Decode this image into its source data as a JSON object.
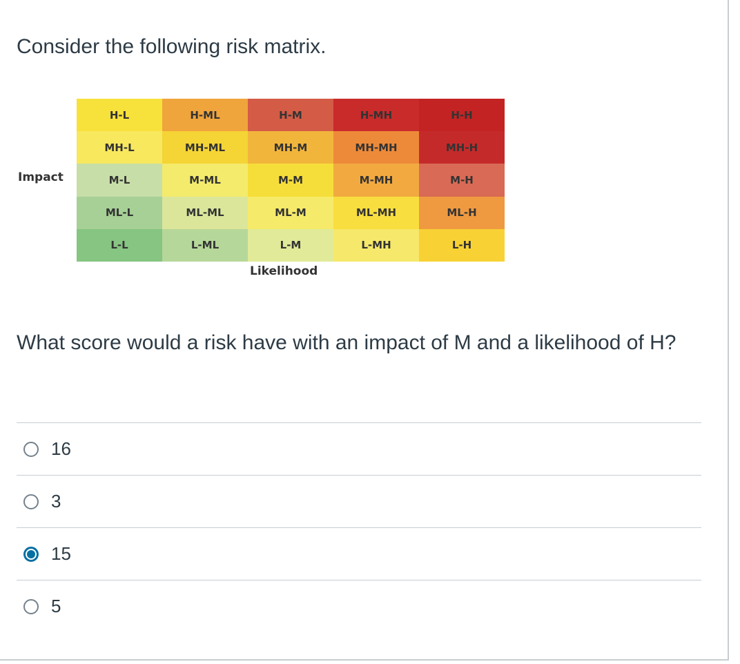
{
  "intro": "Consider the following risk matrix.",
  "matrix": {
    "impact_label": "Impact",
    "likelihood_label": "Likelihood",
    "rows": [
      [
        {
          "label": "H-L",
          "color": "#f7e13b"
        },
        {
          "label": "H-ML",
          "color": "#f0a43c"
        },
        {
          "label": "H-M",
          "color": "#d45b46"
        },
        {
          "label": "H-MH",
          "color": "#c92a2a"
        },
        {
          "label": "H-H",
          "color": "#c42323"
        }
      ],
      [
        {
          "label": "MH-L",
          "color": "#f7e85e"
        },
        {
          "label": "MH-ML",
          "color": "#f5d435"
        },
        {
          "label": "MH-M",
          "color": "#f2b53b"
        },
        {
          "label": "MH-MH",
          "color": "#ed8a3a"
        },
        {
          "label": "MH-H",
          "color": "#c52a2a"
        }
      ],
      [
        {
          "label": "M-L",
          "color": "#c8dea8"
        },
        {
          "label": "M-ML",
          "color": "#f4eb6c"
        },
        {
          "label": "M-M",
          "color": "#f6de3a"
        },
        {
          "label": "M-MH",
          "color": "#f2aa40"
        },
        {
          "label": "M-H",
          "color": "#d96a55"
        }
      ],
      [
        {
          "label": "ML-L",
          "color": "#a6d096"
        },
        {
          "label": "ML-ML",
          "color": "#dbe69b"
        },
        {
          "label": "ML-M",
          "color": "#f6ea6a"
        },
        {
          "label": "ML-MH",
          "color": "#f8de3e"
        },
        {
          "label": "ML-H",
          "color": "#ef9a40"
        }
      ],
      [
        {
          "label": "L-L",
          "color": "#86c582"
        },
        {
          "label": "L-ML",
          "color": "#b6d79a"
        },
        {
          "label": "L-M",
          "color": "#e1ea98"
        },
        {
          "label": "L-MH",
          "color": "#f6e86a"
        },
        {
          "label": "L-H",
          "color": "#f8d234"
        }
      ]
    ]
  },
  "question": "What score would a risk have with an impact of M and a likelihood of H?",
  "answers": [
    {
      "label": "16",
      "selected": false
    },
    {
      "label": "3",
      "selected": false
    },
    {
      "label": "15",
      "selected": true
    },
    {
      "label": "5",
      "selected": false
    }
  ]
}
